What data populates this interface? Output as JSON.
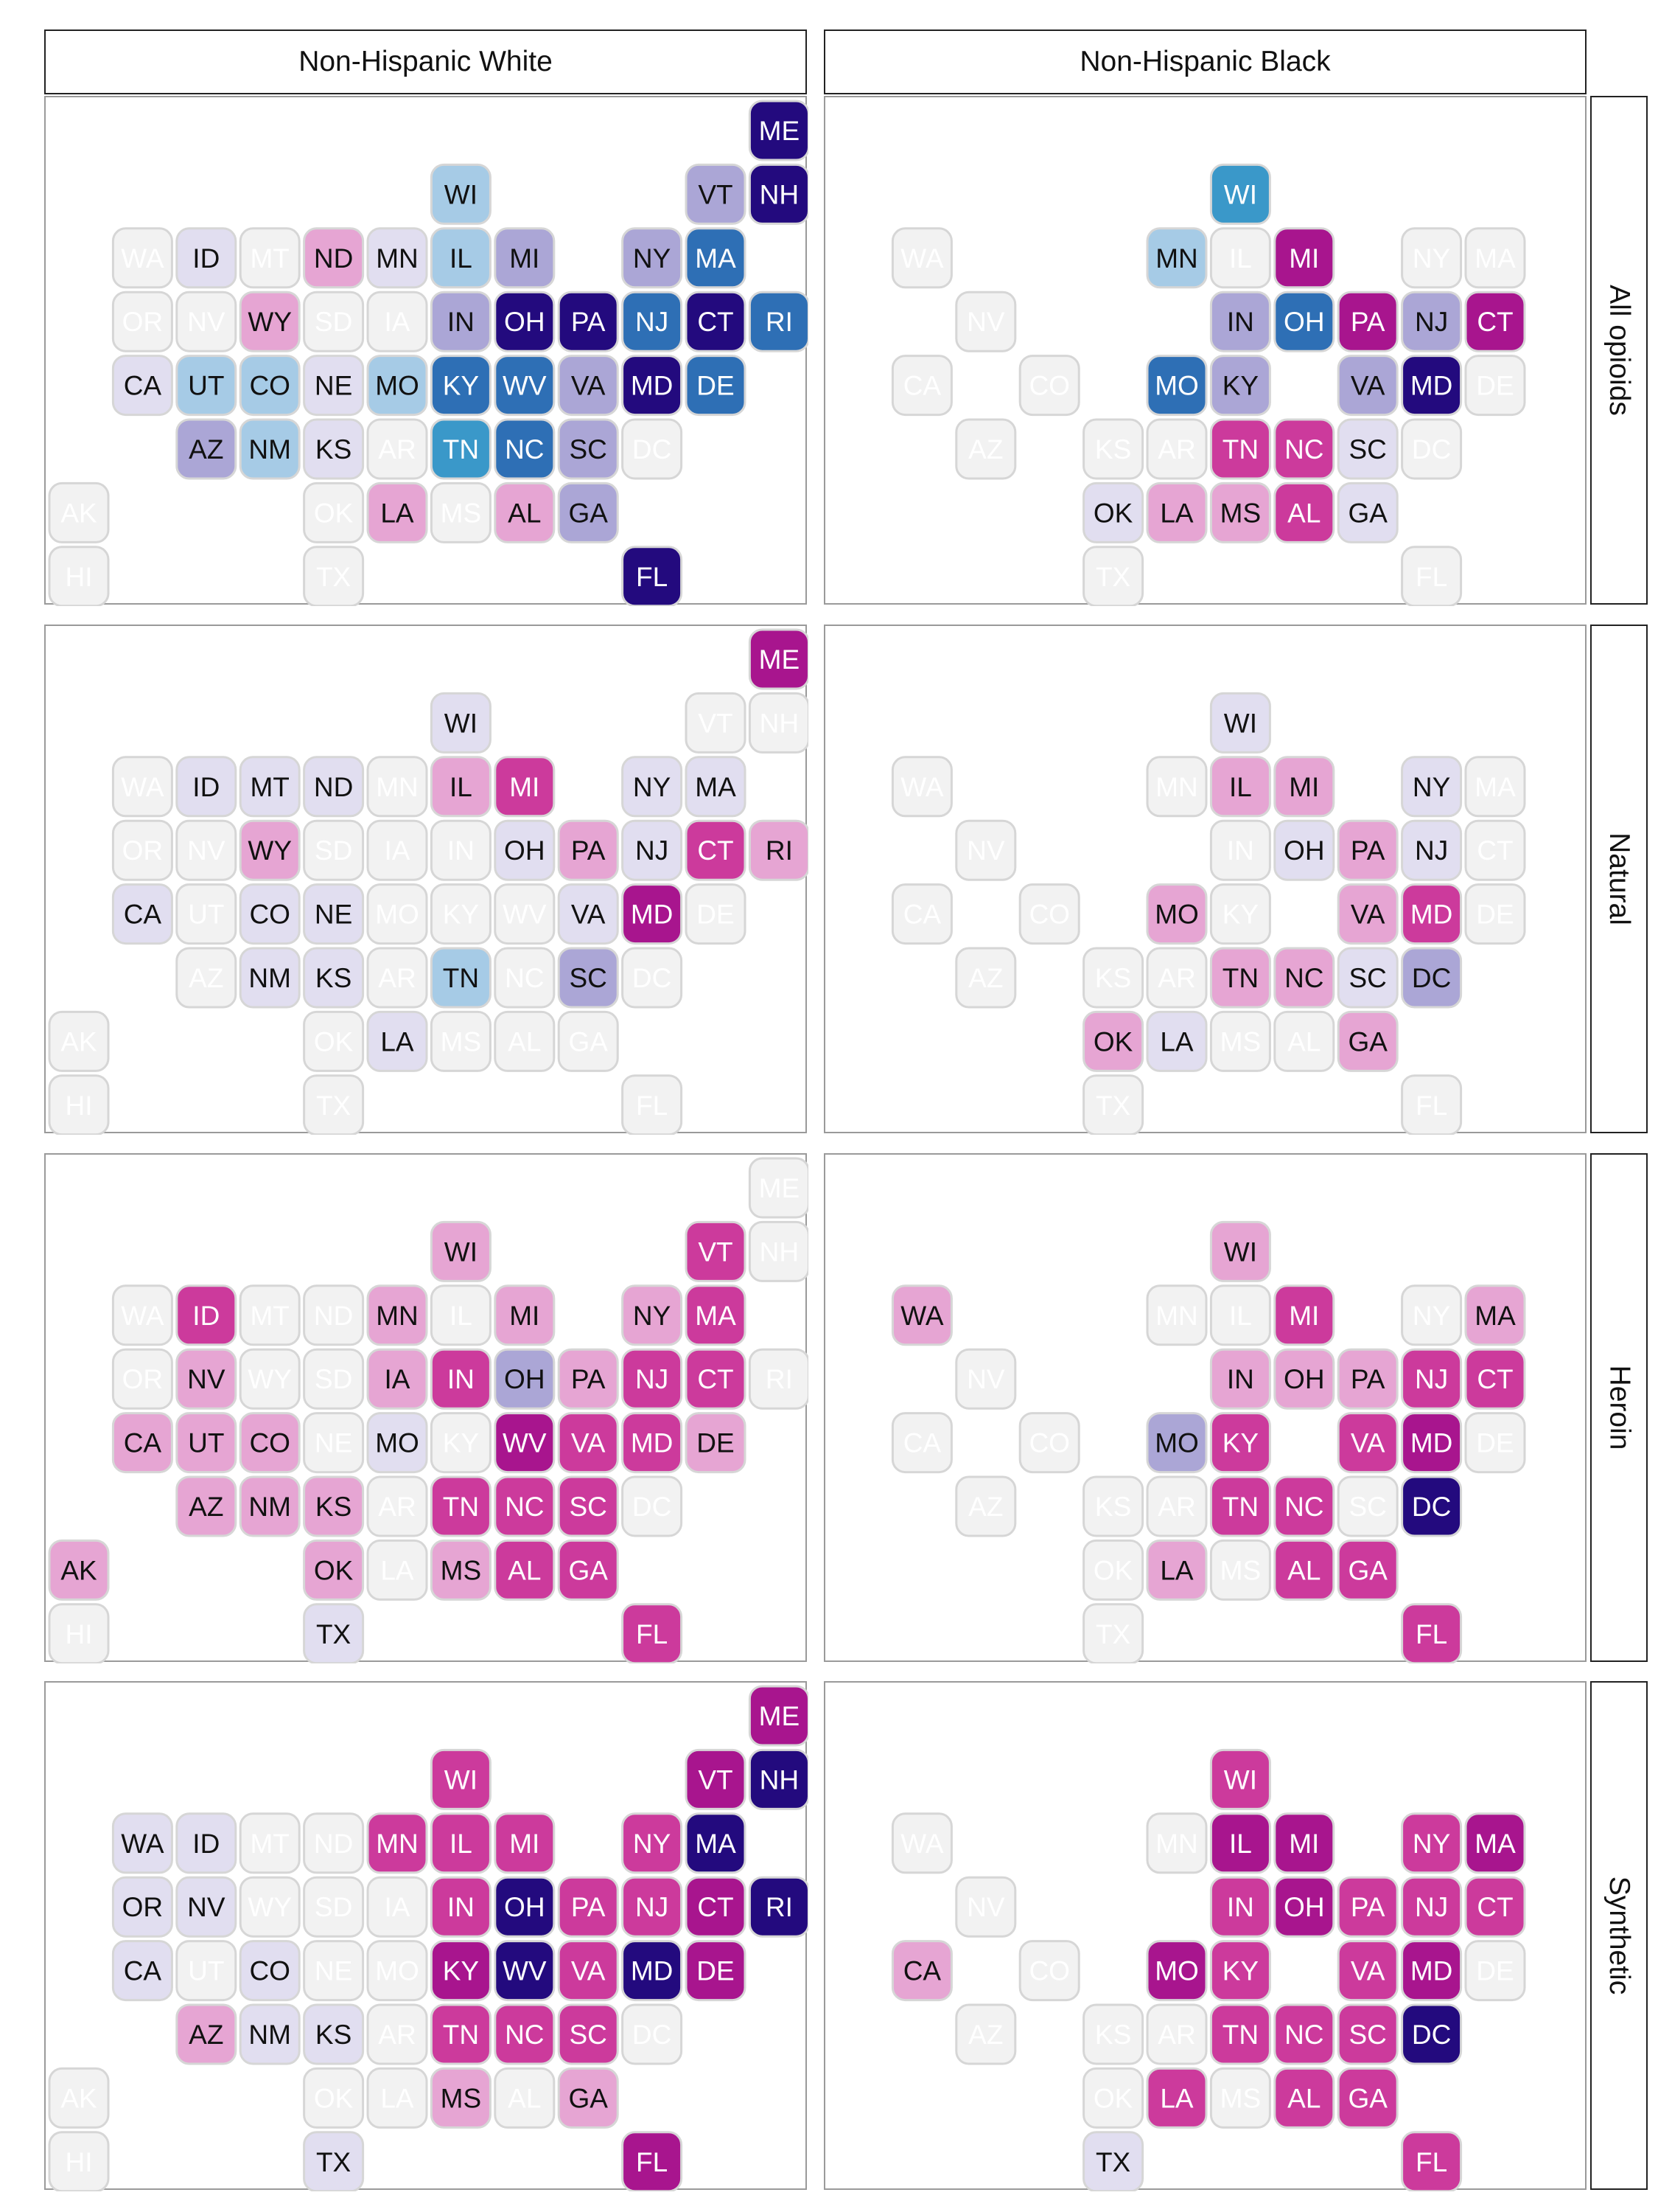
{
  "chart_data": {
    "type": "heatmap",
    "layout": "state tile grid map",
    "columns": [
      "Non-Hispanic White",
      "Non-Hispanic Black"
    ],
    "rows": [
      "All opioids",
      "Natural",
      "Heroin",
      "Synthetic"
    ],
    "color_scale_note": "ordinal shades: 0 = lightest grey, 1 = very light lavender, 2 = light pink, 3 = magenta, 4 = deep magenta, 5 = light lavender-blue, 6 = light blue, 7 = medium blue, 8 = dark navy",
    "palette": {
      "0": "#f2f2f2",
      "1": "#e1def0",
      "2": "#e6a5d3",
      "3": "#cc3a9c",
      "4": "#a8158e",
      "5": "#aba6d6",
      "6": "#a6cbe6",
      "7": "#2e6fb5",
      "8": "#230a7e",
      "9": "#3a98c9"
    },
    "tile_text_colors": {
      "light": "#111111",
      "dark": "#ffffff",
      "empty": "#ffffff"
    },
    "tile_stroke": "#d6d6d6",
    "state_grid": {
      "ME": [
        11,
        0
      ],
      "WI": [
        6,
        1
      ],
      "VT": [
        10,
        1
      ],
      "NH": [
        11,
        1
      ],
      "WA": [
        1,
        2
      ],
      "ID": [
        2,
        2
      ],
      "MT": [
        3,
        2
      ],
      "ND": [
        4,
        2
      ],
      "MN": [
        5,
        2
      ],
      "IL": [
        6,
        2
      ],
      "MI": [
        7,
        2
      ],
      "NY": [
        9,
        2
      ],
      "MA": [
        10,
        2
      ],
      "OR": [
        1,
        3
      ],
      "NV": [
        2,
        3
      ],
      "WY": [
        3,
        3
      ],
      "SD": [
        4,
        3
      ],
      "IA": [
        5,
        3
      ],
      "IN": [
        6,
        3
      ],
      "OH": [
        7,
        3
      ],
      "PA": [
        8,
        3
      ],
      "NJ": [
        9,
        3
      ],
      "CT": [
        10,
        3
      ],
      "RI": [
        11,
        3
      ],
      "CA": [
        1,
        4
      ],
      "UT": [
        2,
        4
      ],
      "CO": [
        3,
        4
      ],
      "NE": [
        4,
        4
      ],
      "MO": [
        5,
        4
      ],
      "KY": [
        6,
        4
      ],
      "WV": [
        7,
        4
      ],
      "VA": [
        8,
        4
      ],
      "MD": [
        9,
        4
      ],
      "DE": [
        10,
        4
      ],
      "AZ": [
        2,
        5
      ],
      "NM": [
        3,
        5
      ],
      "KS": [
        4,
        5
      ],
      "AR": [
        5,
        5
      ],
      "TN": [
        6,
        5
      ],
      "NC": [
        7,
        5
      ],
      "SC": [
        8,
        5
      ],
      "DC": [
        9,
        5
      ],
      "AK": [
        0,
        6
      ],
      "OK": [
        4,
        6
      ],
      "LA": [
        5,
        6
      ],
      "MS": [
        6,
        6
      ],
      "AL": [
        7,
        6
      ],
      "GA": [
        8,
        6
      ],
      "HI": [
        0,
        7
      ],
      "TX": [
        4,
        7
      ],
      "FL": [
        9,
        7
      ]
    },
    "panels": [
      {
        "column": "Non-Hispanic White",
        "row": "All opioids",
        "values": {
          "ME": 8,
          "WI": 6,
          "VT": 5,
          "NH": 8,
          "WA": 0,
          "ID": 1,
          "MT": 0,
          "ND": 2,
          "MN": 1,
          "IL": 6,
          "MI": 5,
          "NY": 5,
          "MA": 7,
          "OR": 0,
          "NV": 0,
          "WY": 2,
          "SD": 0,
          "IA": 0,
          "IN": 5,
          "OH": 8,
          "PA": 8,
          "NJ": 7,
          "CT": 8,
          "RI": 7,
          "CA": 1,
          "UT": 6,
          "CO": 6,
          "NE": 1,
          "MO": 6,
          "KY": 7,
          "WV": 7,
          "VA": 5,
          "MD": 8,
          "DE": 7,
          "AZ": 5,
          "NM": 6,
          "KS": 1,
          "AR": 0,
          "TN": 9,
          "NC": 7,
          "SC": 5,
          "DC": 0,
          "AK": 0,
          "OK": 0,
          "LA": 2,
          "MS": 0,
          "AL": 2,
          "GA": 5,
          "HI": 0,
          "TX": 0,
          "FL": 8
        }
      },
      {
        "column": "Non-Hispanic Black",
        "row": "All opioids",
        "values": {
          "WI": 9,
          "WA": 0,
          "MN": 6,
          "IL": 0,
          "MI": 4,
          "NY": 0,
          "MA": 0,
          "NV": 0,
          "IN": 5,
          "OH": 7,
          "PA": 4,
          "NJ": 5,
          "CT": 4,
          "CA": 0,
          "CO": 0,
          "MO": 7,
          "KY": 5,
          "VA": 5,
          "MD": 8,
          "DE": 0,
          "AZ": 0,
          "KS": 0,
          "AR": 0,
          "TN": 3,
          "NC": 3,
          "SC": 1,
          "DC": 0,
          "OK": 1,
          "LA": 2,
          "MS": 2,
          "AL": 3,
          "GA": 1,
          "TX": 0,
          "FL": 0
        }
      },
      {
        "column": "Non-Hispanic White",
        "row": "Natural",
        "values": {
          "ME": 4,
          "WI": 1,
          "VT": 0,
          "NH": 0,
          "WA": 0,
          "ID": 1,
          "MT": 1,
          "ND": 1,
          "MN": 0,
          "IL": 2,
          "MI": 3,
          "NY": 1,
          "MA": 1,
          "OR": 0,
          "NV": 0,
          "WY": 2,
          "SD": 0,
          "IA": 0,
          "IN": 0,
          "OH": 1,
          "PA": 2,
          "NJ": 1,
          "CT": 3,
          "RI": 2,
          "CA": 1,
          "UT": 0,
          "CO": 1,
          "NE": 1,
          "MO": 0,
          "KY": 0,
          "WV": 0,
          "VA": 1,
          "MD": 4,
          "DE": 0,
          "AZ": 0,
          "NM": 1,
          "KS": 1,
          "AR": 0,
          "TN": 6,
          "NC": 0,
          "SC": 5,
          "DC": 0,
          "AK": 0,
          "OK": 0,
          "LA": 1,
          "MS": 0,
          "AL": 0,
          "GA": 0,
          "HI": 0,
          "TX": 0,
          "FL": 0
        }
      },
      {
        "column": "Non-Hispanic Black",
        "row": "Natural",
        "values": {
          "WI": 1,
          "WA": 0,
          "MN": 0,
          "IL": 2,
          "MI": 2,
          "NY": 1,
          "MA": 0,
          "NV": 0,
          "IN": 0,
          "OH": 1,
          "PA": 2,
          "NJ": 1,
          "CT": 0,
          "CA": 0,
          "CO": 0,
          "MO": 2,
          "KY": 0,
          "VA": 2,
          "MD": 3,
          "DE": 0,
          "AZ": 0,
          "KS": 0,
          "AR": 0,
          "TN": 2,
          "NC": 2,
          "SC": 1,
          "DC": 5,
          "OK": 2,
          "LA": 1,
          "MS": 0,
          "AL": 0,
          "GA": 2,
          "TX": 0,
          "FL": 0
        }
      },
      {
        "column": "Non-Hispanic White",
        "row": "Heroin",
        "values": {
          "ME": 0,
          "WI": 2,
          "VT": 3,
          "NH": 0,
          "WA": 0,
          "ID": 3,
          "MT": 0,
          "ND": 0,
          "MN": 2,
          "IL": 0,
          "MI": 2,
          "NY": 2,
          "MA": 3,
          "OR": 0,
          "NV": 2,
          "WY": 0,
          "SD": 0,
          "IA": 2,
          "IN": 3,
          "OH": 5,
          "PA": 2,
          "NJ": 3,
          "CT": 3,
          "RI": 0,
          "CA": 2,
          "UT": 2,
          "CO": 2,
          "NE": 0,
          "MO": 1,
          "KY": 0,
          "WV": 4,
          "VA": 3,
          "MD": 3,
          "DE": 2,
          "AZ": 2,
          "NM": 2,
          "KS": 2,
          "AR": 0,
          "TN": 3,
          "NC": 3,
          "SC": 3,
          "DC": 0,
          "AK": 2,
          "OK": 2,
          "LA": 0,
          "MS": 2,
          "AL": 3,
          "GA": 3,
          "HI": 0,
          "TX": 1,
          "FL": 3
        }
      },
      {
        "column": "Non-Hispanic Black",
        "row": "Heroin",
        "values": {
          "WI": 2,
          "WA": 2,
          "MN": 0,
          "IL": 0,
          "MI": 3,
          "NY": 0,
          "MA": 2,
          "NV": 0,
          "IN": 2,
          "OH": 2,
          "PA": 2,
          "NJ": 3,
          "CT": 3,
          "CA": 0,
          "CO": 0,
          "MO": 5,
          "KY": 3,
          "VA": 3,
          "MD": 4,
          "DE": 0,
          "AZ": 0,
          "KS": 0,
          "AR": 0,
          "TN": 3,
          "NC": 3,
          "SC": 0,
          "DC": 8,
          "OK": 0,
          "LA": 2,
          "MS": 0,
          "AL": 3,
          "GA": 3,
          "TX": 0,
          "FL": 3
        }
      },
      {
        "column": "Non-Hispanic White",
        "row": "Synthetic",
        "values": {
          "ME": 4,
          "WI": 3,
          "VT": 4,
          "NH": 8,
          "WA": 1,
          "ID": 1,
          "MT": 0,
          "ND": 0,
          "MN": 3,
          "IL": 3,
          "MI": 3,
          "NY": 3,
          "MA": 8,
          "OR": 1,
          "NV": 1,
          "WY": 0,
          "SD": 0,
          "IA": 0,
          "IN": 3,
          "OH": 8,
          "PA": 3,
          "NJ": 3,
          "CT": 4,
          "RI": 8,
          "CA": 1,
          "UT": 0,
          "CO": 1,
          "NE": 0,
          "MO": 0,
          "KY": 4,
          "WV": 8,
          "VA": 3,
          "MD": 8,
          "DE": 4,
          "AZ": 2,
          "NM": 1,
          "KS": 1,
          "AR": 0,
          "TN": 3,
          "NC": 3,
          "SC": 3,
          "DC": 0,
          "AK": 0,
          "OK": 0,
          "LA": 0,
          "MS": 2,
          "AL": 0,
          "GA": 2,
          "HI": 0,
          "TX": 1,
          "FL": 4
        }
      },
      {
        "column": "Non-Hispanic Black",
        "row": "Synthetic",
        "values": {
          "WI": 3,
          "WA": 0,
          "MN": 0,
          "IL": 4,
          "MI": 4,
          "NY": 3,
          "MA": 4,
          "NV": 0,
          "IN": 3,
          "OH": 4,
          "PA": 3,
          "NJ": 3,
          "CT": 3,
          "CA": 2,
          "CO": 0,
          "MO": 4,
          "KY": 3,
          "VA": 3,
          "MD": 4,
          "DE": 0,
          "AZ": 0,
          "KS": 0,
          "AR": 0,
          "TN": 3,
          "NC": 3,
          "SC": 3,
          "DC": 8,
          "OK": 0,
          "LA": 3,
          "MS": 0,
          "AL": 3,
          "GA": 3,
          "TX": 1,
          "FL": 3
        }
      }
    ]
  }
}
